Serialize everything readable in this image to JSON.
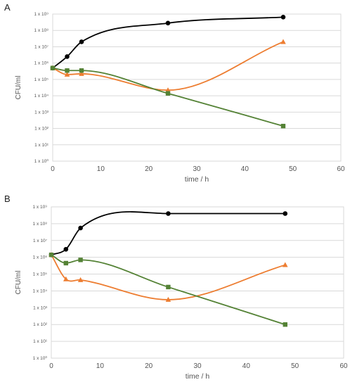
{
  "chart_data": [
    {
      "panel": "A",
      "type": "line",
      "xlabel": "time / h",
      "ylabel": "CFU/ml",
      "xlim": [
        0,
        60
      ],
      "xticks": [
        0,
        10,
        20,
        30,
        40,
        50,
        60
      ],
      "yscale": "log",
      "yticks": [
        "1 x 10⁰",
        "1 x 10¹",
        "1 x 10²",
        "1 x 10³",
        "1 x 10⁴",
        "1 x 10⁵",
        "1 x 10⁶",
        "1 x 10⁷",
        "1 x 10⁸",
        "1 x 10⁹"
      ],
      "grid": "horizontal",
      "legend": "none",
      "series": [
        {
          "marker": "circle",
          "color": "#000000",
          "x": [
            0,
            3,
            6,
            24,
            48
          ],
          "y": [
            500000.0,
            2500000.0,
            20000000.0,
            280000000.0,
            650000000.0
          ]
        },
        {
          "marker": "triangle",
          "color": "#ED7D31",
          "x": [
            0,
            3,
            6,
            24,
            48
          ],
          "y": [
            500000.0,
            200000.0,
            220000.0,
            22000.0,
            20000000.0
          ]
        },
        {
          "marker": "square",
          "color": "#548235",
          "x": [
            0,
            3,
            6,
            24,
            48
          ],
          "y": [
            500000.0,
            350000.0,
            350000.0,
            14000.0,
            140
          ]
        }
      ]
    },
    {
      "panel": "B",
      "type": "line",
      "xlabel": "time / h",
      "ylabel": "CFU/ml",
      "xlim": [
        0,
        60
      ],
      "xticks": [
        0,
        10,
        20,
        30,
        40,
        50,
        60
      ],
      "yscale": "log",
      "yticks": [
        "1 x 10⁰",
        "1 x 10¹",
        "1 x 10²",
        "1 x 10³",
        "1 x 10⁴",
        "1 x 10⁵",
        "1 x 10⁶",
        "1 x 10⁷",
        "1 x 10⁸",
        "1 x 10⁹"
      ],
      "grid": "horizontal",
      "legend": "none",
      "series": [
        {
          "marker": "circle",
          "color": "#000000",
          "x": [
            0,
            3,
            6,
            24,
            48
          ],
          "y": [
            1400000.0,
            3000000.0,
            55000000.0,
            400000000.0,
            400000000.0
          ]
        },
        {
          "marker": "triangle",
          "color": "#ED7D31",
          "x": [
            0,
            3,
            6,
            24,
            48
          ],
          "y": [
            1400000.0,
            50000.0,
            45000.0,
            3000.0,
            350000.0
          ]
        },
        {
          "marker": "square",
          "color": "#548235",
          "x": [
            0,
            3,
            6,
            24,
            48
          ],
          "y": [
            1400000.0,
            450000.0,
            700000.0,
            17000.0,
            100
          ]
        }
      ]
    }
  ],
  "panels": {
    "a_label": "A",
    "b_label": "B"
  }
}
